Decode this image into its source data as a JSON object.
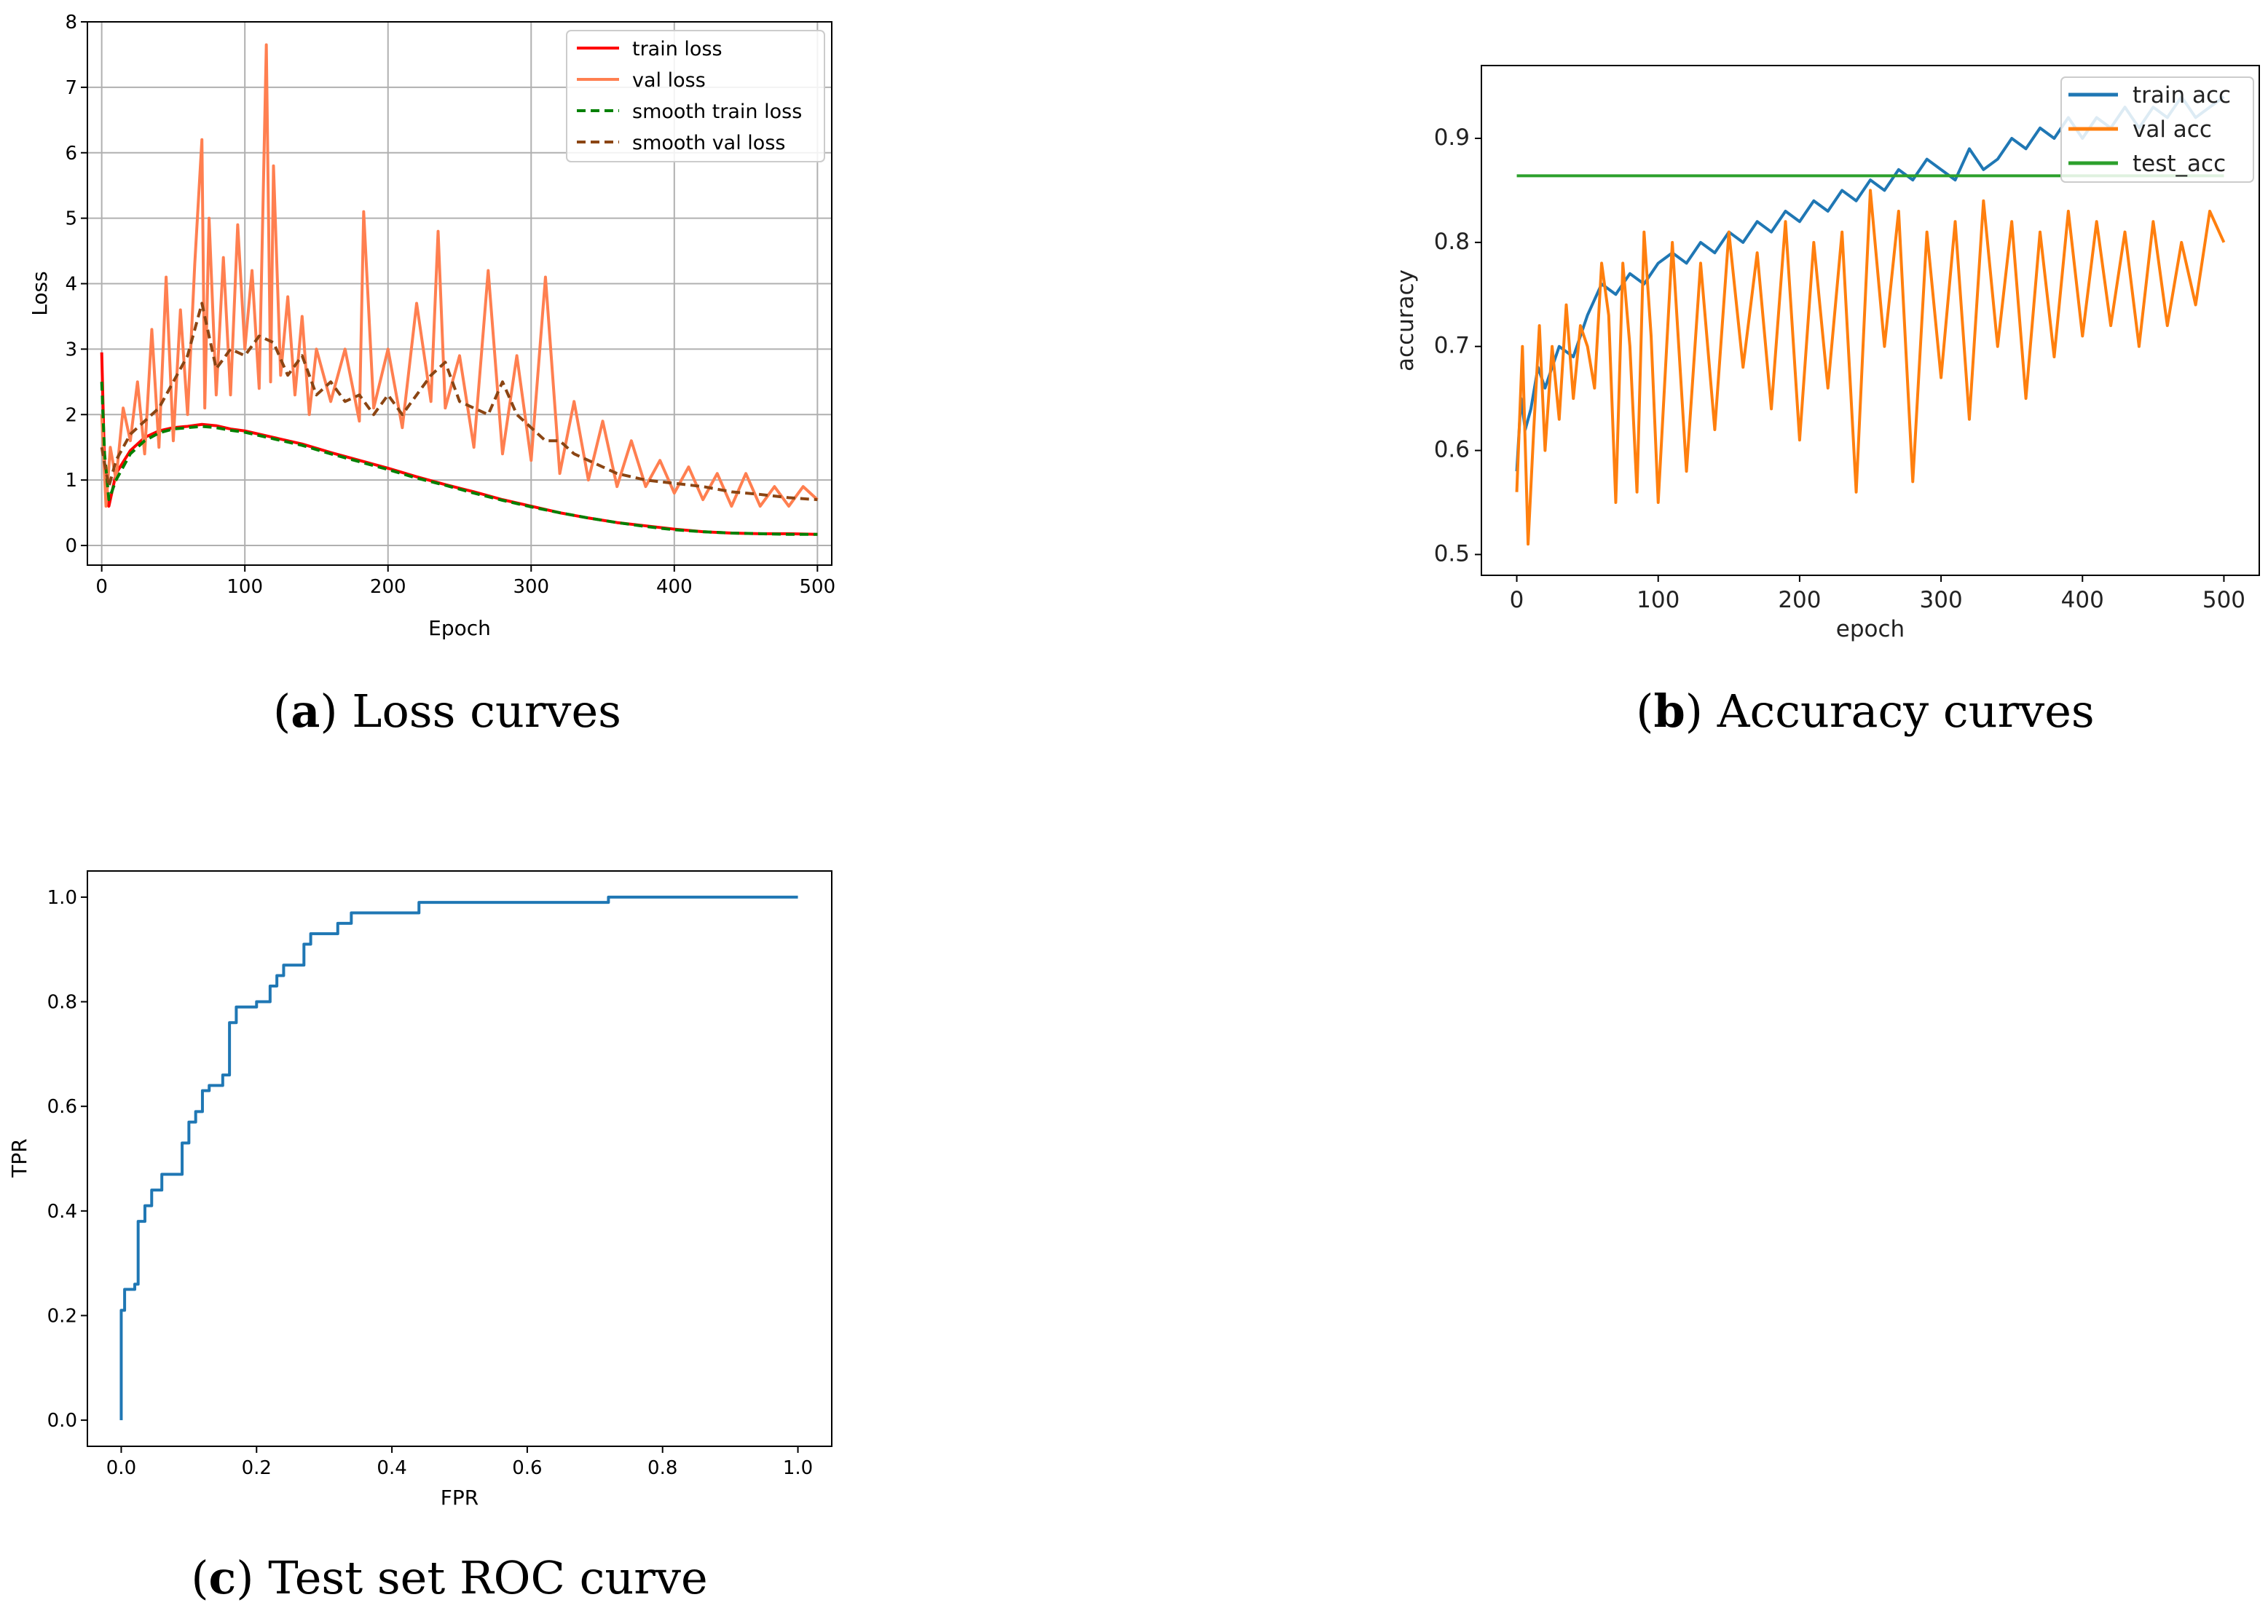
{
  "captions": {
    "a": {
      "open": "(",
      "letter": "a",
      "close": ")",
      "text": " Loss curves"
    },
    "b": {
      "open": "(",
      "letter": "b",
      "close": ")",
      "text": " Accuracy curves"
    },
    "c": {
      "open": "(",
      "letter": "c",
      "close": ")",
      "text": " Test set ROC curve"
    }
  },
  "colors": {
    "train_loss": "#ff0000",
    "val_loss": "#ff7f50",
    "smooth_train_loss": "#008000",
    "smooth_val_loss": "#8b4513",
    "train_acc": "#1f77b4",
    "val_acc": "#ff7f0e",
    "test_acc": "#2ca02c",
    "roc": "#1f77b4"
  },
  "chart_data": [
    {
      "id": "a",
      "type": "line",
      "title": "",
      "xlabel": "Epoch",
      "ylabel": "Loss",
      "xlim": [
        -10,
        510
      ],
      "ylim": [
        -0.3,
        8
      ],
      "xticks": [
        "0",
        "100",
        "200",
        "300",
        "400",
        "500"
      ],
      "yticks": [
        "0",
        "1",
        "2",
        "3",
        "4",
        "5",
        "6",
        "7",
        "8"
      ],
      "grid": true,
      "legend_position": "top-right",
      "series": [
        {
          "name": "train loss",
          "key": "train_loss",
          "x": [
            0,
            2,
            5,
            10,
            20,
            30,
            40,
            50,
            60,
            70,
            80,
            90,
            100,
            120,
            140,
            160,
            180,
            200,
            220,
            240,
            260,
            280,
            300,
            320,
            340,
            360,
            380,
            400,
            420,
            440,
            460,
            480,
            500
          ],
          "y": [
            2.95,
            1.2,
            0.6,
            1.1,
            1.45,
            1.65,
            1.75,
            1.8,
            1.82,
            1.85,
            1.83,
            1.78,
            1.75,
            1.65,
            1.55,
            1.42,
            1.3,
            1.18,
            1.05,
            0.93,
            0.82,
            0.7,
            0.6,
            0.5,
            0.42,
            0.35,
            0.3,
            0.25,
            0.21,
            0.19,
            0.18,
            0.18,
            0.17
          ]
        },
        {
          "name": "val loss",
          "key": "val_loss",
          "x": [
            0,
            3,
            6,
            10,
            15,
            20,
            25,
            30,
            35,
            40,
            45,
            50,
            55,
            60,
            65,
            70,
            72,
            75,
            80,
            85,
            90,
            95,
            100,
            105,
            110,
            115,
            118,
            120,
            125,
            130,
            135,
            140,
            145,
            150,
            160,
            170,
            180,
            183,
            190,
            200,
            210,
            220,
            230,
            235,
            240,
            250,
            260,
            270,
            280,
            290,
            300,
            310,
            320,
            330,
            340,
            350,
            360,
            370,
            380,
            390,
            400,
            410,
            420,
            430,
            440,
            450,
            460,
            470,
            480,
            490,
            500
          ],
          "y": [
            2.0,
            0.6,
            1.5,
            1.0,
            2.1,
            1.6,
            2.5,
            1.4,
            3.3,
            1.5,
            4.1,
            1.6,
            3.6,
            2.0,
            4.3,
            6.2,
            2.1,
            5.0,
            2.3,
            4.4,
            2.3,
            4.9,
            3.0,
            4.2,
            2.4,
            7.65,
            2.5,
            5.8,
            2.6,
            3.8,
            2.3,
            3.5,
            2.0,
            3.0,
            2.2,
            3.0,
            1.9,
            5.1,
            2.1,
            3.0,
            1.8,
            3.7,
            2.2,
            4.8,
            2.1,
            2.9,
            1.5,
            4.2,
            1.4,
            2.9,
            1.3,
            4.1,
            1.1,
            2.2,
            1.0,
            1.9,
            0.9,
            1.6,
            0.9,
            1.3,
            0.8,
            1.2,
            0.7,
            1.1,
            0.6,
            1.1,
            0.6,
            0.9,
            0.6,
            0.9,
            0.7
          ]
        },
        {
          "name": "smooth train loss",
          "key": "smooth_train_loss",
          "dashed": true,
          "x": [
            0,
            2,
            5,
            10,
            20,
            30,
            40,
            50,
            60,
            70,
            80,
            90,
            100,
            120,
            140,
            160,
            180,
            200,
            220,
            240,
            260,
            280,
            300,
            320,
            340,
            360,
            380,
            400,
            420,
            440,
            460,
            480,
            500
          ],
          "y": [
            2.5,
            1.4,
            0.7,
            1.0,
            1.4,
            1.6,
            1.72,
            1.78,
            1.8,
            1.82,
            1.8,
            1.76,
            1.73,
            1.63,
            1.53,
            1.4,
            1.28,
            1.16,
            1.03,
            0.92,
            0.8,
            0.69,
            0.59,
            0.5,
            0.42,
            0.35,
            0.29,
            0.24,
            0.21,
            0.19,
            0.18,
            0.17,
            0.17
          ]
        },
        {
          "name": "smooth val loss",
          "key": "smooth_val_loss",
          "dashed": true,
          "x": [
            0,
            5,
            10,
            20,
            30,
            40,
            50,
            60,
            70,
            80,
            90,
            100,
            110,
            120,
            130,
            140,
            150,
            160,
            170,
            180,
            190,
            200,
            210,
            220,
            230,
            240,
            250,
            260,
            270,
            280,
            290,
            300,
            310,
            320,
            330,
            340,
            350,
            360,
            380,
            400,
            420,
            440,
            460,
            480,
            500
          ],
          "y": [
            1.5,
            0.9,
            1.3,
            1.7,
            1.9,
            2.1,
            2.5,
            2.9,
            3.7,
            2.7,
            3.0,
            2.9,
            3.2,
            3.1,
            2.6,
            2.9,
            2.3,
            2.5,
            2.2,
            2.3,
            2.0,
            2.3,
            2.0,
            2.3,
            2.6,
            2.8,
            2.2,
            2.1,
            2.0,
            2.5,
            2.0,
            1.8,
            1.6,
            1.6,
            1.4,
            1.3,
            1.2,
            1.1,
            1.0,
            0.95,
            0.9,
            0.82,
            0.78,
            0.73,
            0.7
          ]
        }
      ]
    },
    {
      "id": "b",
      "type": "line",
      "title": "",
      "xlabel": "epoch",
      "ylabel": "accuracy",
      "xlim": [
        -25,
        525
      ],
      "ylim": [
        0.48,
        0.97
      ],
      "xticks": [
        "0",
        "100",
        "200",
        "300",
        "400",
        "500"
      ],
      "yticks": [
        "0.5",
        "0.6",
        "0.7",
        "0.8",
        "0.9"
      ],
      "grid": false,
      "legend_position": "top-right",
      "series": [
        {
          "name": "train acc",
          "key": "train_acc",
          "x": [
            0,
            3,
            6,
            10,
            15,
            20,
            30,
            40,
            50,
            60,
            70,
            80,
            90,
            100,
            110,
            120,
            130,
            140,
            150,
            160,
            170,
            180,
            190,
            200,
            210,
            220,
            230,
            240,
            250,
            260,
            270,
            280,
            290,
            300,
            310,
            320,
            330,
            340,
            350,
            360,
            370,
            380,
            390,
            400,
            410,
            420,
            430,
            440,
            450,
            460,
            470,
            480,
            490,
            500
          ],
          "y": [
            0.58,
            0.65,
            0.62,
            0.64,
            0.68,
            0.66,
            0.7,
            0.69,
            0.73,
            0.76,
            0.75,
            0.77,
            0.76,
            0.78,
            0.79,
            0.78,
            0.8,
            0.79,
            0.81,
            0.8,
            0.82,
            0.81,
            0.83,
            0.82,
            0.84,
            0.83,
            0.85,
            0.84,
            0.86,
            0.85,
            0.87,
            0.86,
            0.88,
            0.87,
            0.86,
            0.89,
            0.87,
            0.88,
            0.9,
            0.89,
            0.91,
            0.9,
            0.92,
            0.9,
            0.92,
            0.91,
            0.93,
            0.91,
            0.93,
            0.92,
            0.94,
            0.92,
            0.93,
            0.94
          ]
        },
        {
          "name": "val acc",
          "key": "val_acc",
          "x": [
            0,
            4,
            8,
            12,
            16,
            20,
            25,
            30,
            35,
            40,
            45,
            50,
            55,
            60,
            65,
            70,
            75,
            80,
            85,
            90,
            95,
            100,
            110,
            120,
            130,
            140,
            150,
            160,
            170,
            180,
            190,
            200,
            210,
            220,
            230,
            240,
            250,
            260,
            270,
            280,
            290,
            300,
            310,
            320,
            330,
            340,
            350,
            360,
            370,
            380,
            390,
            400,
            410,
            420,
            430,
            440,
            450,
            460,
            470,
            480,
            490,
            500
          ],
          "y": [
            0.56,
            0.7,
            0.51,
            0.62,
            0.72,
            0.6,
            0.7,
            0.63,
            0.74,
            0.65,
            0.72,
            0.7,
            0.66,
            0.78,
            0.73,
            0.55,
            0.78,
            0.7,
            0.56,
            0.81,
            0.71,
            0.55,
            0.8,
            0.58,
            0.78,
            0.62,
            0.81,
            0.68,
            0.79,
            0.64,
            0.82,
            0.61,
            0.8,
            0.66,
            0.81,
            0.56,
            0.85,
            0.7,
            0.83,
            0.57,
            0.81,
            0.67,
            0.82,
            0.63,
            0.84,
            0.7,
            0.82,
            0.65,
            0.81,
            0.69,
            0.83,
            0.71,
            0.82,
            0.72,
            0.81,
            0.7,
            0.82,
            0.72,
            0.8,
            0.74,
            0.83,
            0.8
          ]
        },
        {
          "name": "test_acc",
          "key": "test_acc",
          "x": [
            0,
            500
          ],
          "y": [
            0.864,
            0.864
          ]
        }
      ]
    },
    {
      "id": "c",
      "type": "line",
      "title": "",
      "xlabel": "FPR",
      "ylabel": "TPR",
      "xlim": [
        -0.05,
        1.05
      ],
      "ylim": [
        -0.05,
        1.05
      ],
      "xticks": [
        "0.0",
        "0.2",
        "0.4",
        "0.6",
        "0.8",
        "1.0"
      ],
      "yticks": [
        "0.0",
        "0.2",
        "0.4",
        "0.6",
        "0.8",
        "1.0"
      ],
      "grid": false,
      "legend_position": "none",
      "series": [
        {
          "name": "ROC",
          "key": "roc",
          "step": true,
          "x": [
            0.0,
            0.0,
            0.005,
            0.005,
            0.02,
            0.02,
            0.025,
            0.025,
            0.035,
            0.035,
            0.045,
            0.045,
            0.06,
            0.06,
            0.075,
            0.075,
            0.09,
            0.09,
            0.1,
            0.1,
            0.11,
            0.11,
            0.12,
            0.12,
            0.13,
            0.13,
            0.15,
            0.15,
            0.16,
            0.16,
            0.17,
            0.17,
            0.2,
            0.2,
            0.22,
            0.22,
            0.23,
            0.23,
            0.24,
            0.24,
            0.25,
            0.25,
            0.27,
            0.27,
            0.28,
            0.28,
            0.29,
            0.29,
            0.32,
            0.32,
            0.34,
            0.34,
            0.36,
            0.36,
            0.44,
            0.44,
            0.48,
            0.48,
            0.72,
            0.72,
            1.0
          ],
          "y": [
            0.0,
            0.21,
            0.21,
            0.25,
            0.25,
            0.26,
            0.26,
            0.38,
            0.38,
            0.41,
            0.41,
            0.44,
            0.44,
            0.47,
            0.47,
            0.47,
            0.47,
            0.53,
            0.53,
            0.57,
            0.57,
            0.59,
            0.59,
            0.63,
            0.63,
            0.64,
            0.64,
            0.66,
            0.66,
            0.76,
            0.76,
            0.79,
            0.79,
            0.8,
            0.8,
            0.83,
            0.83,
            0.85,
            0.85,
            0.87,
            0.87,
            0.87,
            0.87,
            0.91,
            0.91,
            0.93,
            0.93,
            0.93,
            0.93,
            0.95,
            0.95,
            0.97,
            0.97,
            0.97,
            0.97,
            0.99,
            0.99,
            0.99,
            0.99,
            1.0,
            1.0
          ]
        }
      ]
    }
  ]
}
